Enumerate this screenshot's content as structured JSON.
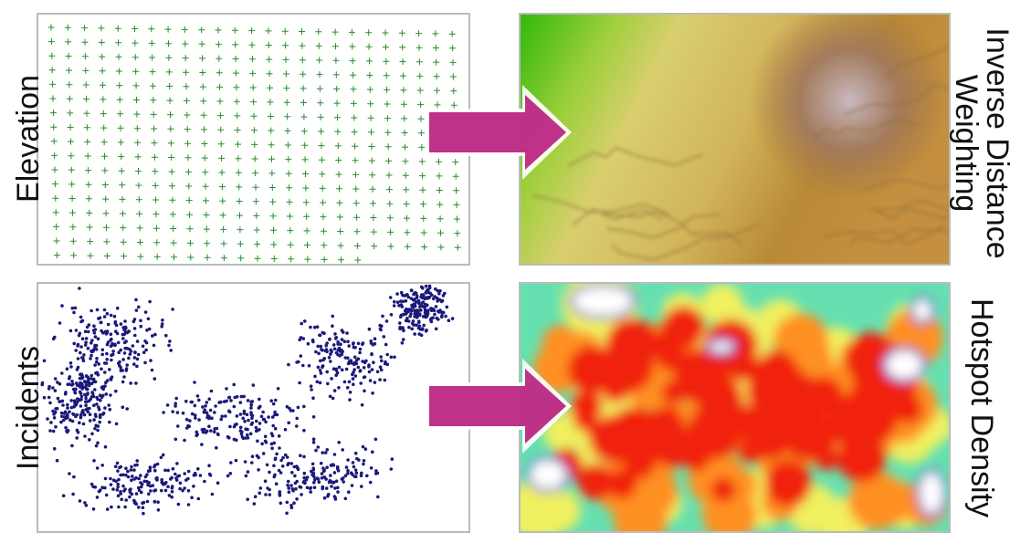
{
  "labels": {
    "elevation": "Elevation",
    "idw": [
      "Inverse Distance",
      "Weighting"
    ],
    "incidents": "Incidents",
    "hotspot": "Hotspot Density"
  }
}
